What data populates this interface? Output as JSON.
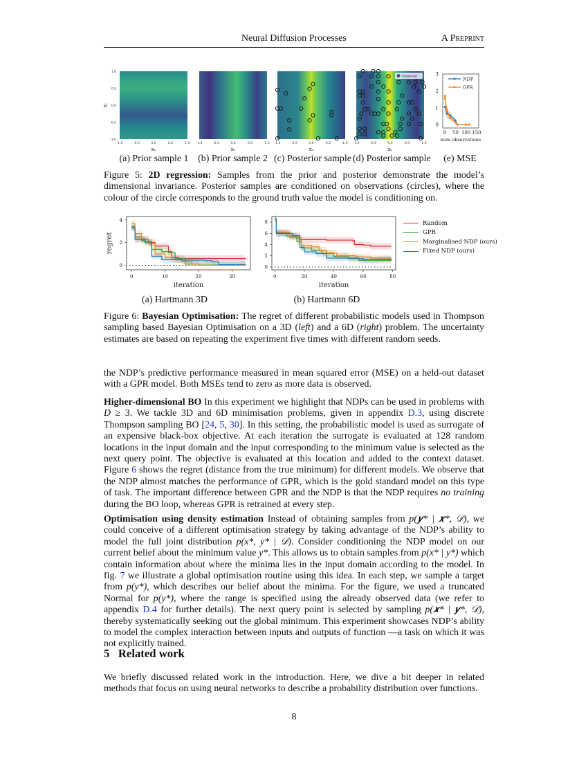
{
  "header": {
    "title": "Neural Diffusion Processes",
    "right": "A Preprint"
  },
  "figure5": {
    "panels": [
      {
        "caption": "(a) Prior sample 1",
        "xlabel": "x₀",
        "ylabel": "x₁",
        "pattern": "horizontal-bands"
      },
      {
        "caption": "(b) Prior sample 2",
        "xlabel": "x₀",
        "pattern": "vertical-bands"
      },
      {
        "caption": "(c) Posterior sample",
        "xlabel": "x₀",
        "pattern": "posterior"
      },
      {
        "caption": "(d) Posterior sample",
        "xlabel": "x₀",
        "pattern": "posterior-dense",
        "legend": "Observed"
      }
    ],
    "heatmap_ticks": [
      "-1.0",
      "-0.5",
      "0.0",
      "0.5",
      "1.0"
    ],
    "observed_c": [
      [
        -1,
        0.45
      ],
      [
        0.05,
        0.62
      ],
      [
        -0.05,
        0.48
      ],
      [
        -0.75,
        0.35
      ],
      [
        -0.2,
        0.2
      ],
      [
        -1,
        -0.1
      ],
      [
        -0.9,
        -0.1
      ],
      [
        -0.3,
        -0.1
      ],
      [
        0.6,
        -0.2
      ],
      [
        0.6,
        -0.3
      ],
      [
        0.05,
        -0.3
      ],
      [
        -0.65,
        -0.45
      ],
      [
        -0.05,
        -0.45
      ],
      [
        -0.65,
        -0.72
      ],
      [
        0.2,
        -0.98
      ],
      [
        0.75,
        -0.98
      ],
      [
        -1,
        -0.98
      ]
    ],
    "observed_d": [
      [
        -0.9,
        0.85
      ],
      [
        -0.55,
        0.85
      ],
      [
        -0.35,
        0.85
      ],
      [
        -0.05,
        0.85
      ],
      [
        -0.8,
        1
      ],
      [
        -0.5,
        1
      ],
      [
        -0.35,
        1
      ],
      [
        -0.35,
        0.68
      ],
      [
        0.25,
        0.68
      ],
      [
        0.55,
        0.68
      ],
      [
        0.75,
        0.68
      ],
      [
        0.95,
        0.68
      ],
      [
        -0.55,
        0.55
      ],
      [
        -0.2,
        0.55
      ],
      [
        0.7,
        0.55
      ],
      [
        1,
        0.55
      ],
      [
        -0.9,
        0.4
      ],
      [
        -0.8,
        0.4
      ],
      [
        -0.35,
        0.4
      ],
      [
        -0.05,
        0.4
      ],
      [
        0.85,
        0.4
      ],
      [
        -0.9,
        0.28
      ],
      [
        -0.8,
        0.28
      ],
      [
        0.35,
        0.28
      ],
      [
        -0.35,
        0.18
      ],
      [
        -0.05,
        0.08
      ],
      [
        0.25,
        0.08
      ],
      [
        0.55,
        0.08
      ],
      [
        0.65,
        0.08
      ],
      [
        -0.8,
        0.08
      ],
      [
        -0.75,
        -0.12
      ],
      [
        -0.65,
        -0.12
      ],
      [
        -0.2,
        -0.12
      ],
      [
        0.2,
        -0.12
      ],
      [
        0.75,
        -0.12
      ],
      [
        -0.85,
        -0.25
      ],
      [
        -0.55,
        -0.25
      ],
      [
        -0.45,
        -0.25
      ],
      [
        -0.35,
        -0.25
      ],
      [
        -0.05,
        -0.25
      ],
      [
        0.55,
        -0.25
      ],
      [
        0.85,
        -0.25
      ],
      [
        -0.9,
        -0.4
      ],
      [
        0.35,
        -0.4
      ],
      [
        0.65,
        -0.4
      ],
      [
        -0.2,
        -0.55
      ],
      [
        -0.1,
        -0.55
      ],
      [
        0.3,
        -0.55
      ],
      [
        0.55,
        -0.55
      ],
      [
        0.9,
        -0.55
      ],
      [
        -0.9,
        -0.7
      ],
      [
        -0.75,
        -0.7
      ],
      [
        -0.05,
        -0.7
      ],
      [
        0.3,
        -0.7
      ],
      [
        -0.35,
        -0.8
      ],
      [
        -0.2,
        -0.8
      ],
      [
        0.15,
        -0.8
      ],
      [
        -0.9,
        -0.85
      ],
      [
        -0.75,
        -0.85
      ],
      [
        -0.2,
        -0.9
      ],
      [
        0.05,
        -0.9
      ],
      [
        0.2,
        -0.9
      ],
      [
        -1,
        -0.98
      ],
      [
        0.9,
        -0.98
      ]
    ],
    "mse": {
      "caption": "(e) MSE",
      "xlabel": "num observations",
      "xticks": [
        0,
        50,
        100,
        150
      ],
      "yticks": [
        0,
        1,
        2,
        3
      ],
      "xlim": [
        -10,
        160
      ],
      "ylim": [
        -0.2,
        3
      ],
      "series": [
        {
          "name": "NDP",
          "color": "#1f77b4",
          "x": [
            0,
            10,
            25,
            50,
            60,
            100,
            115
          ],
          "y": [
            1.05,
            0.65,
            0.55,
            0.25,
            0.0,
            0.0,
            0.0
          ]
        },
        {
          "name": "GPR",
          "color": "#ff7f0e",
          "x": [
            0,
            0,
            10,
            25,
            50,
            60,
            100,
            115
          ],
          "y": [
            1.7,
            1.55,
            0.85,
            0.4,
            0.12,
            0.0,
            0.0,
            0.0
          ]
        }
      ]
    },
    "caption_label": "Figure 5:",
    "caption_bold": "2D regression:",
    "caption_text": " Samples from the prior and posterior demonstrate the model’s dimensional invariance. Posterior samples are conditioned on observations (circles), where the colour of the circle corresponds to the ground truth value the model is conditioning on."
  },
  "chart_data": [
    {
      "type": "line",
      "title": "(a) Hartmann 3D",
      "xlabel": "iteration",
      "ylabel": "regret",
      "xticks": [
        0,
        10,
        20,
        30
      ],
      "yticks": [
        0,
        2,
        4
      ],
      "xlim": [
        -1.5,
        35.5
      ],
      "ylim": [
        -0.4,
        4.3
      ],
      "grid": false,
      "series": [
        {
          "name": "Random",
          "color": "#d62728",
          "x": [
            0,
            1,
            3,
            5,
            7,
            9,
            11,
            12,
            14,
            34
          ],
          "y": [
            3.3,
            2.3,
            2.3,
            2.0,
            1.7,
            1.7,
            1.2,
            0.7,
            0.6,
            0.55
          ]
        },
        {
          "name": "GPR",
          "color": "#2ca02c",
          "x": [
            0,
            1,
            3,
            4,
            6,
            9,
            11,
            13,
            16,
            20,
            34
          ],
          "y": [
            3.4,
            2.5,
            2.2,
            2.0,
            1.4,
            1.2,
            1.1,
            0.6,
            0.1,
            0.02,
            0
          ]
        },
        {
          "name": "Marginalised NDP (ours)",
          "color": "#ff7f0e",
          "x": [
            0,
            1,
            3,
            5,
            7,
            10,
            12,
            15,
            18,
            20,
            34
          ],
          "y": [
            3.7,
            2.8,
            2.3,
            1.9,
            1.0,
            0.7,
            0.5,
            0.3,
            0.1,
            0,
            0
          ]
        },
        {
          "name": "Fixed NDP (ours)",
          "color": "#1f77b4",
          "x": [
            0,
            1,
            4,
            6,
            9,
            15,
            22,
            24,
            26,
            34
          ],
          "y": [
            3.3,
            2.3,
            2.1,
            0.8,
            0.5,
            0.45,
            0.4,
            0.3,
            0.05,
            0
          ]
        }
      ]
    },
    {
      "type": "line",
      "title": "(b) Hartmann 6D",
      "xlabel": "iteration",
      "ylabel": "",
      "xticks": [
        0,
        20,
        40,
        60,
        80
      ],
      "yticks": [
        0,
        2,
        4,
        6,
        8
      ],
      "xlim": [
        -2,
        82
      ],
      "ylim": [
        -0.5,
        9
      ],
      "grid": false,
      "series": [
        {
          "name": "Random",
          "color": "#d62728",
          "x": [
            0,
            1,
            5,
            10,
            15,
            17,
            30,
            35,
            53,
            54,
            60,
            65,
            79
          ],
          "y": [
            8.6,
            6.2,
            6.0,
            5.5,
            5.2,
            4.9,
            4.9,
            4.8,
            4.7,
            4.0,
            3.9,
            3.7,
            3.7
          ]
        },
        {
          "name": "GPR",
          "color": "#2ca02c",
          "x": [
            0,
            1,
            8,
            15,
            18,
            25,
            32,
            40,
            50,
            57,
            79
          ],
          "y": [
            8.6,
            6.0,
            5.5,
            4.5,
            3.4,
            3.0,
            2.4,
            1.9,
            1.6,
            1.2,
            1.2
          ]
        },
        {
          "name": "Marginalised NDP (ours)",
          "color": "#ff7f0e",
          "x": [
            0,
            1,
            10,
            18,
            25,
            30,
            35,
            42,
            55,
            65,
            79
          ],
          "y": [
            8.6,
            6.2,
            5.3,
            3.8,
            3.6,
            3.0,
            2.5,
            2.0,
            1.8,
            1.6,
            1.6
          ]
        },
        {
          "name": "Fixed NDP (ours)",
          "color": "#1f77b4",
          "x": [
            0,
            1,
            12,
            17,
            20,
            28,
            35,
            50,
            60,
            70,
            79
          ],
          "y": [
            8.6,
            6.0,
            5.6,
            3.5,
            2.7,
            2.4,
            1.6,
            1.5,
            1.3,
            1.4,
            1.2
          ]
        }
      ],
      "legend": "right"
    }
  ],
  "figure6": {
    "legend": [
      "Random",
      "GPR",
      "Marginalised NDP (ours)",
      "Fixed NDP (ours)"
    ],
    "caption_label": "Figure 6:",
    "caption_bold": "Bayesian Optimisation:",
    "caption_parts": [
      " The regret of different probabilistic models used in Thompson sampling based Bayesian Optimisation on a 3D (",
      "left",
      ") and a 6D (",
      "right",
      ") problem. The uncertainty estimates are based on repeating the experiment five times with different random seeds."
    ]
  },
  "paragraphs": [
    [
      {
        "t": "the NDP’s predictive performance measured in mean squared error (MSE) on a held-out dataset with a GPR model. Both MSEs tend to zero as more data is observed."
      }
    ],
    [
      {
        "s": "b",
        "t": "Higher-dimensional BO"
      },
      {
        "t": "   In this experiment we highlight that NDPs can be used in problems with "
      },
      {
        "s": "i",
        "t": "D"
      },
      {
        "t": " ≥ 3. We tackle 3D and 6D minimisation problems, given in appendix "
      },
      {
        "s": "link",
        "t": "D.3"
      },
      {
        "t": ", using discrete Thompson sampling BO ["
      },
      {
        "s": "link",
        "t": "24"
      },
      {
        "t": ", "
      },
      {
        "s": "link",
        "t": "5"
      },
      {
        "t": ", "
      },
      {
        "s": "link",
        "t": "30"
      },
      {
        "t": "]. In this setting, the probabilistic model is used as surrogate of an expensive black-box objective. At each iteration the surrogate is evaluated at 128 random locations in the input domain and the input corresponding to the minimum value is selected as the next query point. The objective is evaluated at this location and added to the context dataset. Figure "
      },
      {
        "s": "link",
        "t": "6"
      },
      {
        "t": " shows the regret (distance from the true minimum) for different models. We observe that the NDP almost matches the performance of GPR, which is the gold standard model on this type of task. The important difference between GPR and the NDP is that the NDP requires "
      },
      {
        "s": "i",
        "t": "no training"
      },
      {
        "t": " during the BO loop, whereas GPR is retrained at every step."
      }
    ],
    [
      {
        "s": "b",
        "t": "Optimisation using density estimation"
      },
      {
        "t": "   Instead of obtaining samples from "
      },
      {
        "s": "i",
        "t": "p(𝒚* | 𝒙*, 𝒟)"
      },
      {
        "t": ", we could conceive of a different optimisation strategy by taking advantage of the NDP’s ability to model the full joint distribution "
      },
      {
        "s": "i",
        "t": "p(x*, y* | 𝒟)"
      },
      {
        "t": ". Consider conditioning the NDP model on our current belief about the minimum value "
      },
      {
        "s": "i",
        "t": "y*"
      },
      {
        "t": ". This allows us to obtain samples from "
      },
      {
        "s": "i",
        "t": "p(x* | y*)"
      },
      {
        "t": " which contain information about where the minima lies in the input domain according to the model. In fig. "
      },
      {
        "s": "link",
        "t": "7"
      },
      {
        "t": " we illustrate a global optimisation routine using this idea. In each step, we sample a target from "
      },
      {
        "s": "i",
        "t": "p(y*)"
      },
      {
        "t": ", which describes our belief about the minima. For the figure, we used a truncated Normal for "
      },
      {
        "s": "i",
        "t": "p(y*)"
      },
      {
        "t": ", where the range is specified using the already observed data (we refer to appendix "
      },
      {
        "s": "link",
        "t": "D.4"
      },
      {
        "t": " for further details). The next query point is selected by sampling "
      },
      {
        "s": "i",
        "t": "p(𝒙* | 𝒚*, 𝒟)"
      },
      {
        "t": ", thereby systematically seeking out the global minimum. This experiment showcases NDP’s ability to model the complex interaction between inputs and outputs of function —a task on which it was not explicitly trained."
      }
    ],
    [
      {
        "t": "We briefly discussed related work in the introduction. Here, we dive a bit deeper in related methods that focus on using neural networks to describe a probability distribution over functions."
      }
    ]
  ],
  "section": {
    "number": "5",
    "title": "Related work"
  },
  "page_number": "8"
}
